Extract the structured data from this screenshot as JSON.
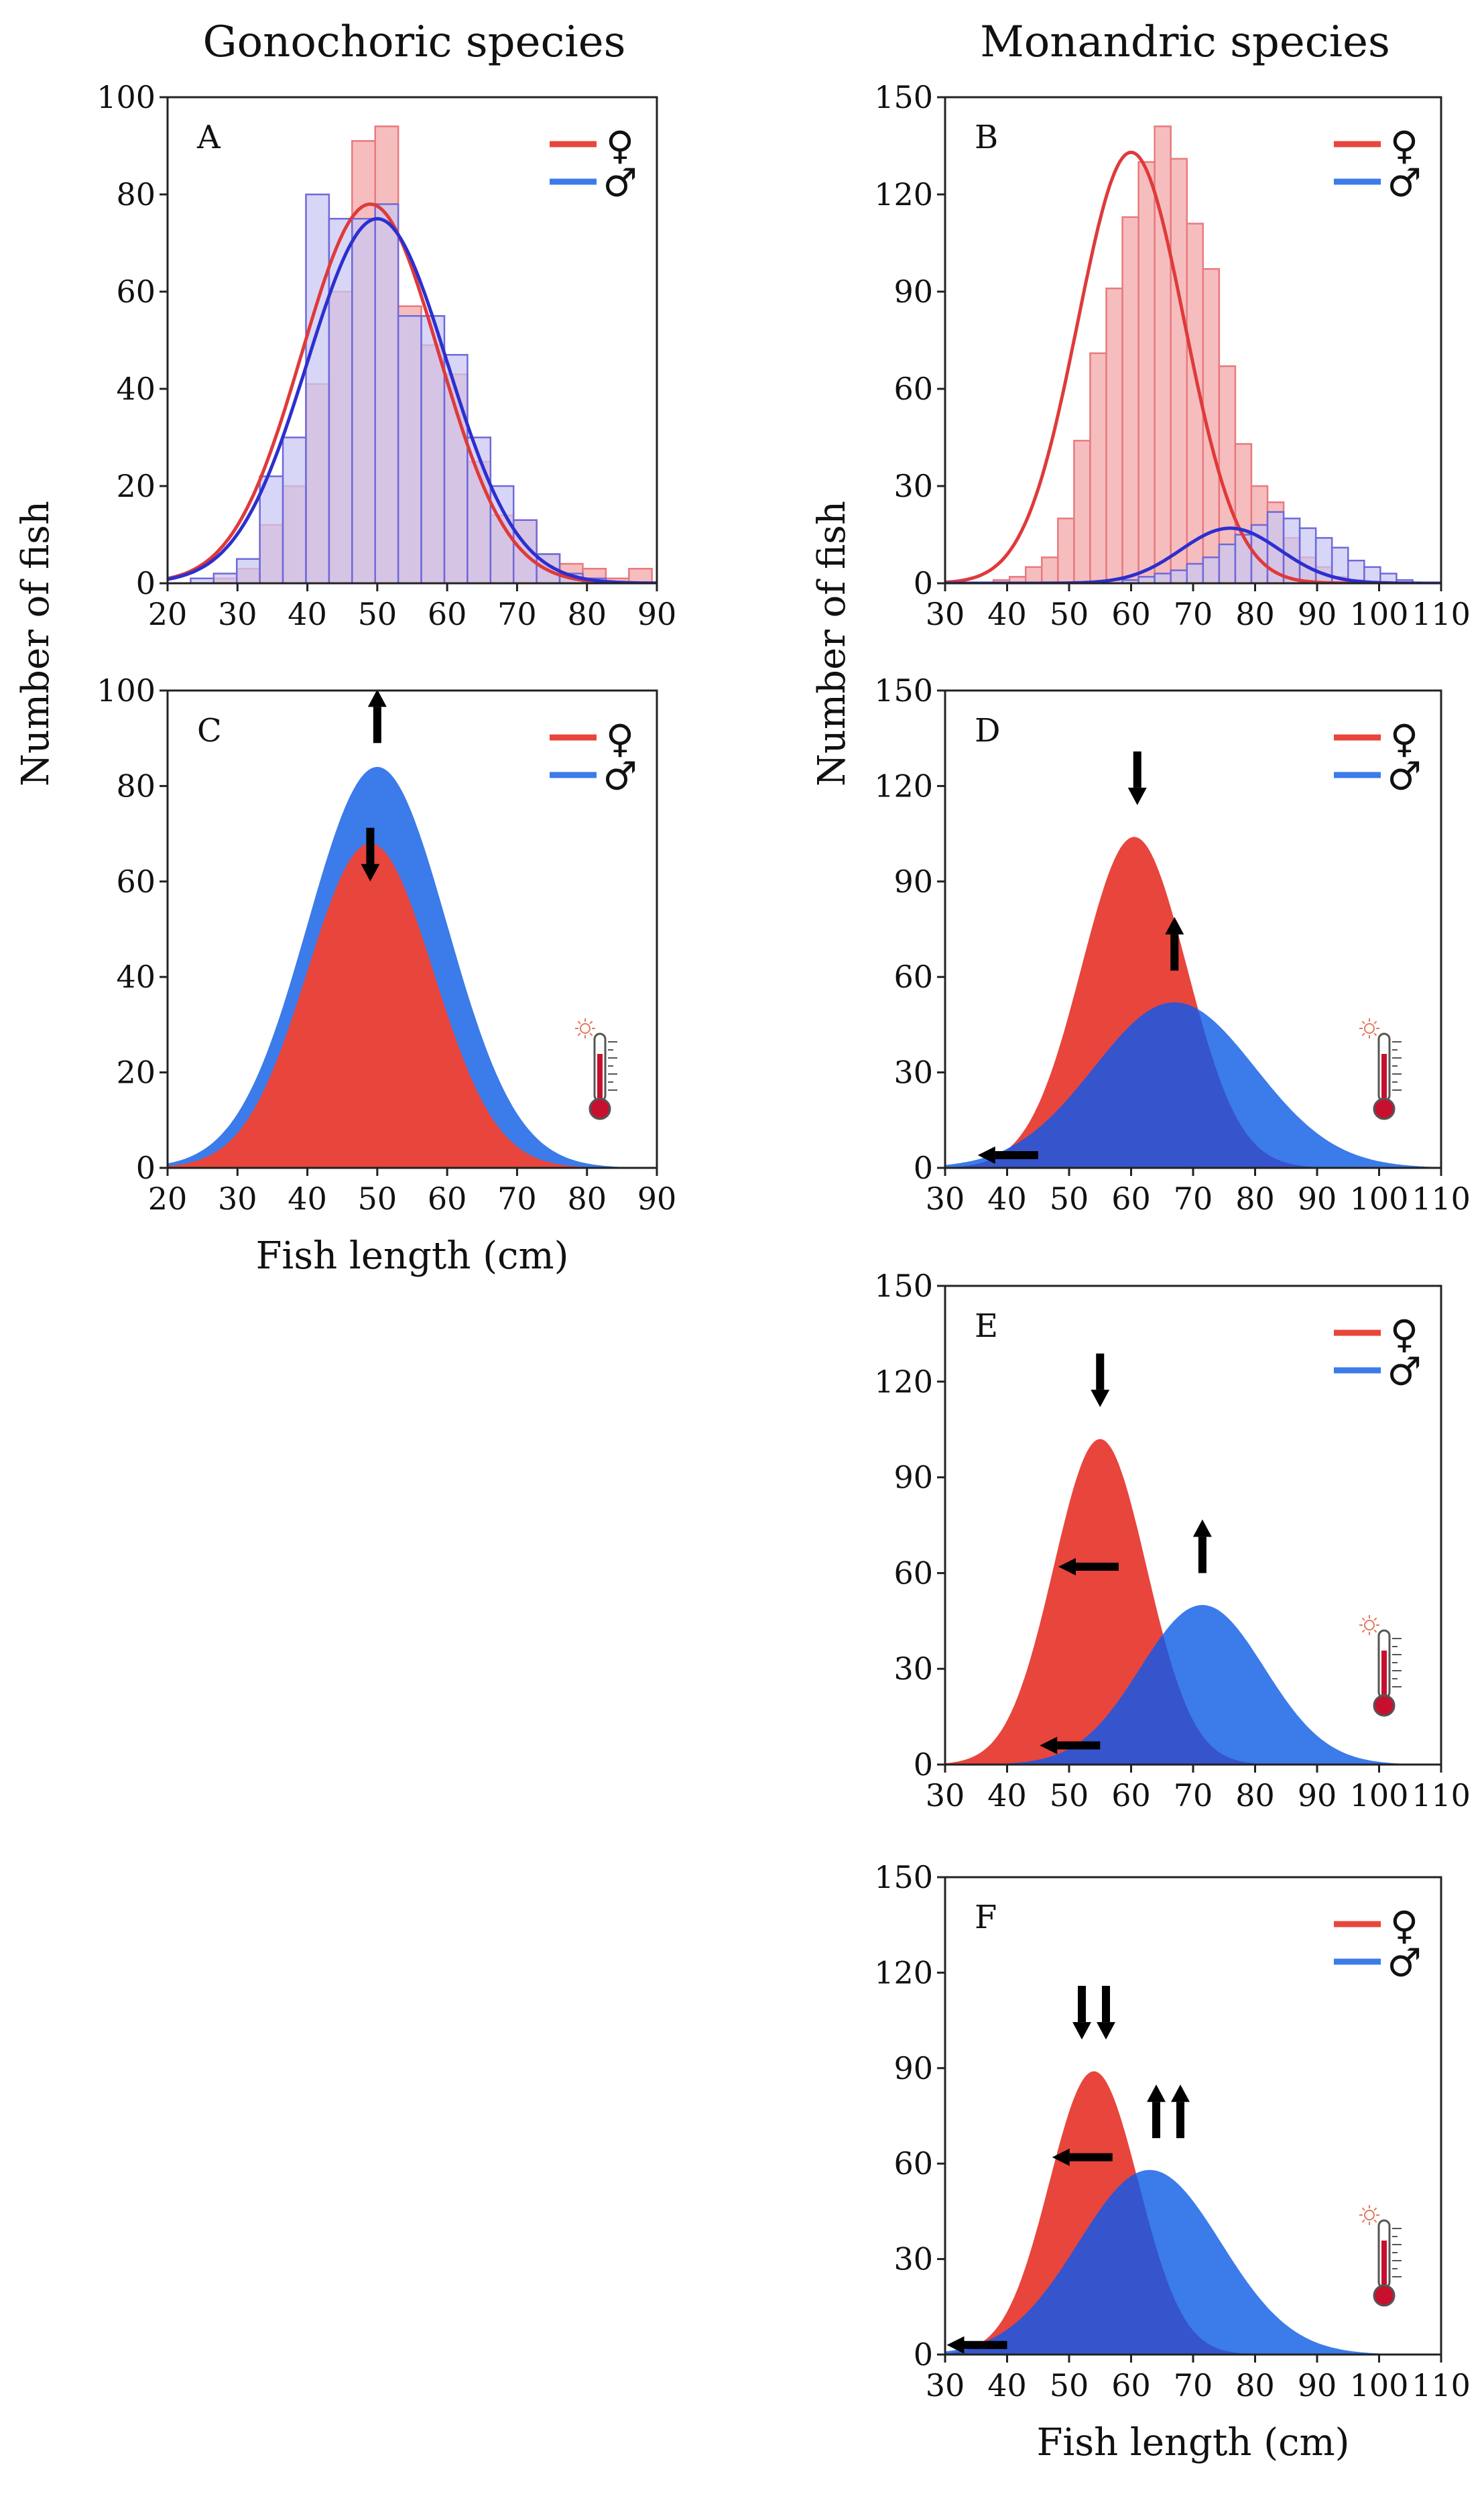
{
  "figure": {
    "col_titles": [
      "Gonochoric species",
      "Monandric species"
    ],
    "ylabel": "Number of fish",
    "xlabel": "Fish length (cm)",
    "legend": {
      "female": "♀",
      "male": "♂"
    },
    "colors": {
      "female": "#e8453c",
      "male": "#3b7bea",
      "male_overlap": "#3654cc",
      "hist_female": "#f6b9bb",
      "hist_male": "#c9c6f4",
      "hist_female_edge": "#e87a7e",
      "hist_male_edge": "#6f6ad8",
      "fit_female": "#df3a3a",
      "fit_male": "#2c2fd0"
    }
  },
  "chart_data": [
    {
      "panel": "A",
      "type": "bar",
      "title": "",
      "xlabel": "",
      "ylabel": "Number of fish",
      "xlim": [
        20,
        90
      ],
      "ylim": [
        0,
        100
      ],
      "xticks": [
        "20",
        "30",
        "40",
        "50",
        "60",
        "70",
        "80",
        "90"
      ],
      "yticks": [
        "0",
        "20",
        "40",
        "60",
        "80",
        "100"
      ],
      "bin_start": 20,
      "bin_width": 3.3,
      "series": [
        {
          "name": "♀",
          "values": [
            0,
            0,
            1,
            3,
            12,
            20,
            41,
            60,
            91,
            94,
            57,
            49,
            43,
            25,
            14,
            13,
            6,
            4,
            3,
            1,
            3,
            0
          ]
        },
        {
          "name": "♂",
          "values": [
            0,
            1,
            2,
            5,
            22,
            30,
            80,
            75,
            75,
            78,
            55,
            55,
            47,
            30,
            20,
            13,
            6,
            2,
            1,
            0,
            0,
            0
          ]
        }
      ],
      "fits": [
        {
          "name": "♀",
          "mean": 49,
          "sd": 9.8,
          "peak": 78
        },
        {
          "name": "♂",
          "mean": 50,
          "sd": 10,
          "peak": 75
        }
      ]
    },
    {
      "panel": "B",
      "type": "bar",
      "title": "",
      "xlabel": "",
      "ylabel": "",
      "xlim": [
        30,
        110
      ],
      "ylim": [
        0,
        150
      ],
      "xticks": [
        "30",
        "40",
        "50",
        "60",
        "70",
        "80",
        "90",
        "100",
        "110"
      ],
      "yticks": [
        "0",
        "30",
        "60",
        "90",
        "120",
        "150"
      ],
      "bin_start": 30,
      "bin_width": 2.6,
      "series": [
        {
          "name": "♀",
          "values": [
            0,
            0,
            0,
            1,
            2,
            5,
            8,
            20,
            44,
            71,
            91,
            113,
            130,
            141,
            131,
            111,
            97,
            67,
            43,
            30,
            25,
            14,
            8,
            5,
            2,
            1,
            0,
            0,
            0,
            0
          ]
        },
        {
          "name": "♂",
          "values": [
            0,
            0,
            0,
            0,
            0,
            0,
            0,
            0,
            0,
            0,
            0,
            1,
            2,
            3,
            4,
            6,
            8,
            12,
            15,
            18,
            22,
            20,
            17,
            14,
            11,
            7,
            5,
            3,
            1,
            0
          ]
        }
      ],
      "fits": [
        {
          "name": "♀",
          "mean": 60,
          "sd": 8.6,
          "peak": 133
        },
        {
          "name": "♂",
          "mean": 76,
          "sd": 8,
          "peak": 17
        }
      ]
    },
    {
      "panel": "C",
      "type": "area",
      "title": "",
      "xlabel": "Fish length (cm)",
      "ylabel": "",
      "xlim": [
        20,
        90
      ],
      "ylim": [
        0,
        100
      ],
      "xticks": [
        "20",
        "30",
        "40",
        "50",
        "60",
        "70",
        "80",
        "90"
      ],
      "yticks": [
        "0",
        "20",
        "40",
        "60",
        "80",
        "100"
      ],
      "series": [
        {
          "name": "♀",
          "mean": 49,
          "sd": 9,
          "peak": 68
        },
        {
          "name": "♂",
          "mean": 50,
          "sd": 10,
          "peak": 84
        }
      ],
      "annotations": [
        {
          "type": "arrow",
          "dir": "up",
          "x": 50,
          "y": 89
        },
        {
          "type": "arrow",
          "dir": "down",
          "x": 49,
          "y": 60
        }
      ]
    },
    {
      "panel": "D",
      "type": "area",
      "title": "",
      "xlabel": "",
      "ylabel": "Number of fish",
      "xlim": [
        30,
        110
      ],
      "ylim": [
        0,
        150
      ],
      "xticks": [
        "30",
        "40",
        "50",
        "60",
        "70",
        "80",
        "90",
        "100",
        "110"
      ],
      "yticks": [
        "0",
        "30",
        "60",
        "90",
        "120",
        "150"
      ],
      "series": [
        {
          "name": "♀",
          "mean": 60.5,
          "sd": 8.5,
          "peak": 104
        },
        {
          "name": "♂",
          "mean": 67,
          "sd": 13,
          "peak": 52
        }
      ],
      "annotations": [
        {
          "type": "arrow",
          "dir": "down",
          "x": 61,
          "y": 114
        },
        {
          "type": "arrow",
          "dir": "up",
          "x": 67,
          "y": 62
        },
        {
          "type": "arrow",
          "dir": "left",
          "x": 45,
          "y": 4
        }
      ]
    },
    {
      "panel": "E",
      "type": "area",
      "title": "",
      "xlabel": "",
      "ylabel": "",
      "xlim": [
        30,
        110
      ],
      "ylim": [
        0,
        150
      ],
      "xticks": [
        "30",
        "40",
        "50",
        "60",
        "70",
        "80",
        "90",
        "100",
        "110"
      ],
      "yticks": [
        "0",
        "30",
        "60",
        "90",
        "120",
        "150"
      ],
      "series": [
        {
          "name": "♀",
          "mean": 55,
          "sd": 7.5,
          "peak": 102
        },
        {
          "name": "♂",
          "mean": 71.5,
          "sd": 10,
          "peak": 50
        }
      ],
      "annotations": [
        {
          "type": "arrow",
          "dir": "down",
          "x": 55,
          "y": 112
        },
        {
          "type": "arrow",
          "dir": "left",
          "x": 58,
          "y": 62
        },
        {
          "type": "arrow",
          "dir": "up",
          "x": 71.5,
          "y": 60
        },
        {
          "type": "arrow",
          "dir": "left",
          "x": 55,
          "y": 6
        }
      ]
    },
    {
      "panel": "F",
      "type": "area",
      "title": "",
      "xlabel": "Fish length (cm)",
      "ylabel": "",
      "xlim": [
        30,
        110
      ],
      "ylim": [
        0,
        150
      ],
      "xticks": [
        "30",
        "40",
        "50",
        "60",
        "70",
        "80",
        "90",
        "100",
        "110"
      ],
      "yticks": [
        "0",
        "30",
        "60",
        "90",
        "120",
        "150"
      ],
      "series": [
        {
          "name": "♀",
          "mean": 54,
          "sd": 7.2,
          "peak": 89
        },
        {
          "name": "♂",
          "mean": 63,
          "sd": 11.5,
          "peak": 58
        }
      ],
      "annotations": [
        {
          "type": "double-arrow",
          "dir": "down",
          "x": 54,
          "y": 99
        },
        {
          "type": "left",
          "dir": "left",
          "x": 57,
          "y": 62
        },
        {
          "type": "double-arrow",
          "dir": "up",
          "x": 66,
          "y": 68
        },
        {
          "type": "arrow",
          "dir": "left",
          "x": 40,
          "y": 3
        }
      ]
    }
  ]
}
